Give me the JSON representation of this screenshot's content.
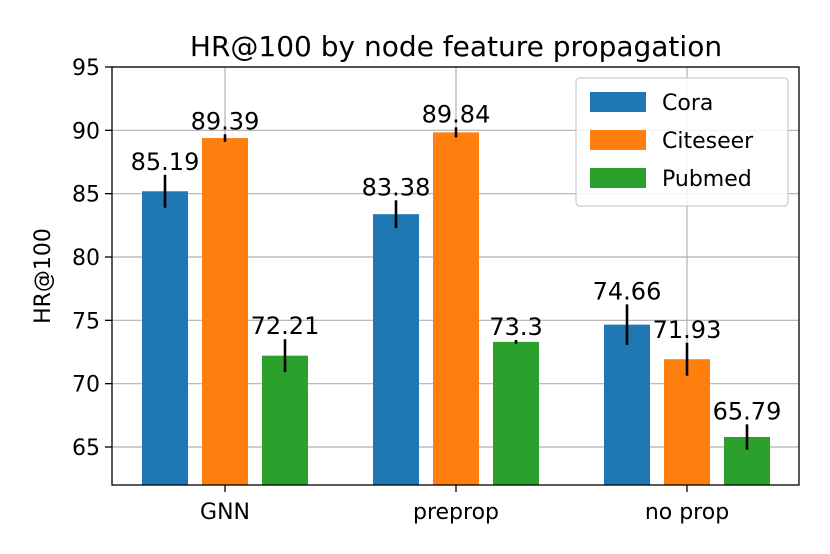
{
  "chart_data": {
    "type": "bar",
    "title": "HR@100 by node feature propagation",
    "xlabel": "",
    "ylabel": "HR@100",
    "ylim": [
      62,
      95
    ],
    "yticks": [
      65,
      70,
      75,
      80,
      85,
      90,
      95
    ],
    "categories": [
      "GNN",
      "preprop",
      "no prop"
    ],
    "series": [
      {
        "name": "Cora",
        "color": "#1f77b4",
        "values": [
          85.19,
          83.38,
          74.66
        ],
        "err": [
          1.3,
          1.1,
          1.6
        ],
        "labels": [
          "85.19",
          "83.38",
          "74.66"
        ]
      },
      {
        "name": "Citeseer",
        "color": "#ff7f0e",
        "values": [
          89.39,
          89.84,
          71.93
        ],
        "err": [
          0.3,
          0.4,
          1.3
        ],
        "labels": [
          "89.39",
          "89.84",
          "71.93"
        ]
      },
      {
        "name": "Pubmed",
        "color": "#2ca02c",
        "values": [
          72.21,
          73.3,
          65.79
        ],
        "err": [
          1.3,
          0.15,
          1.0
        ],
        "labels": [
          "72.21",
          "73.3",
          "65.79"
        ]
      }
    ],
    "grid": true,
    "legend_position": "top-right"
  }
}
